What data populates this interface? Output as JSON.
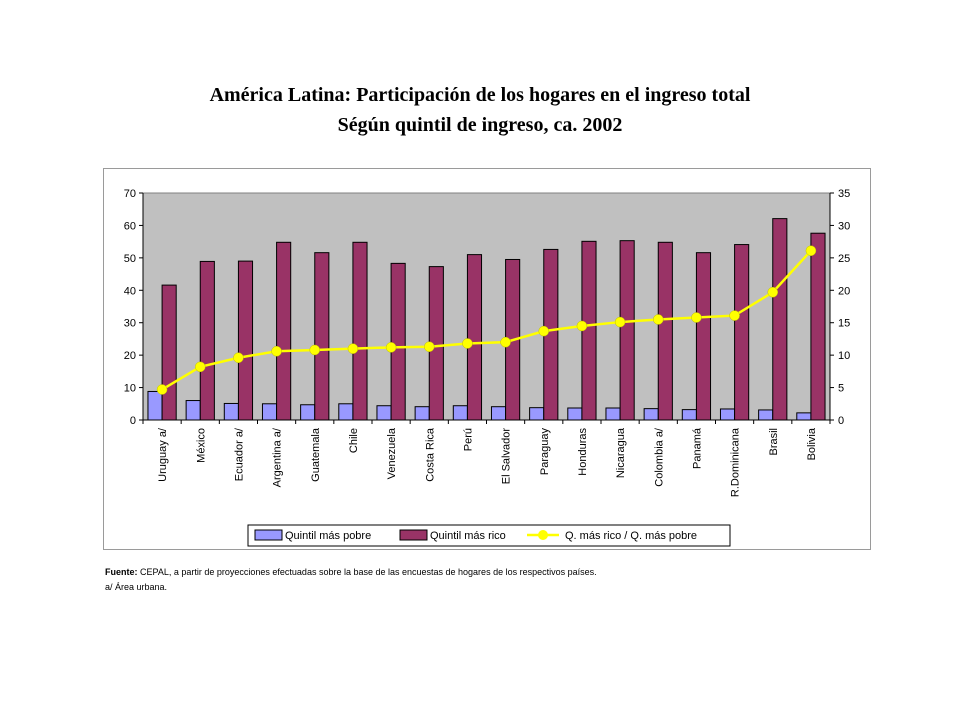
{
  "title_line1": "América Latina: Participación de los hogares en el ingreso total",
  "title_line2": "Ségún quintil de ingreso, ca. 2002",
  "source_label": "Fuente:",
  "source_text": "CEPAL, a partir de proyecciones efectuadas sobre la base de las encuestas de hogares de los respectivos países.",
  "note_text": "a/ Área urbana.",
  "colors": {
    "plot_background": "#c0c0c0",
    "poorest": "#9999ff",
    "richest": "#993366",
    "ratio": "#ffff00"
  },
  "chart_data": {
    "type": "bar",
    "categories": [
      "Uruguay a/",
      "México",
      "Ecuador a/",
      "Argentina a/",
      "Guatemala",
      "Chile",
      "Venezuela",
      "Costa Rica",
      "Perú",
      "El Salvador",
      "Paraguay",
      "Honduras",
      "Nicaragua",
      "Colombia a/",
      "Panamá",
      "R.Dominicana",
      "Brasil",
      "Bolivia"
    ],
    "series": [
      {
        "name": "Quintil más pobre",
        "type": "bar",
        "axis": "left",
        "values": [
          8.8,
          6.0,
          5.1,
          5.0,
          4.7,
          5.0,
          4.4,
          4.1,
          4.4,
          4.1,
          3.8,
          3.7,
          3.7,
          3.5,
          3.2,
          3.4,
          3.1,
          2.2
        ]
      },
      {
        "name": "Quintil más rico",
        "type": "bar",
        "axis": "left",
        "values": [
          41.6,
          48.9,
          49.0,
          54.8,
          51.6,
          54.8,
          48.3,
          47.3,
          51.0,
          49.5,
          52.6,
          55.1,
          55.3,
          54.8,
          51.6,
          54.1,
          62.1,
          57.6
        ]
      },
      {
        "name": "Q. más rico / Q. más pobre",
        "type": "line",
        "axis": "right",
        "values": [
          4.7,
          8.2,
          9.6,
          10.6,
          10.8,
          11.0,
          11.2,
          11.3,
          11.8,
          12.0,
          13.7,
          14.5,
          15.1,
          15.5,
          15.8,
          16.1,
          19.7,
          26.1
        ]
      }
    ],
    "y_left": {
      "min": 0,
      "max": 70,
      "ticks": [
        "0",
        "10",
        "20",
        "30",
        "40",
        "50",
        "60",
        "70"
      ]
    },
    "y_right": {
      "min": 0,
      "max": 35,
      "ticks": [
        "0",
        "5",
        "10",
        "15",
        "20",
        "25",
        "30",
        "35"
      ]
    },
    "grid": false,
    "legend_position": "bottom"
  }
}
